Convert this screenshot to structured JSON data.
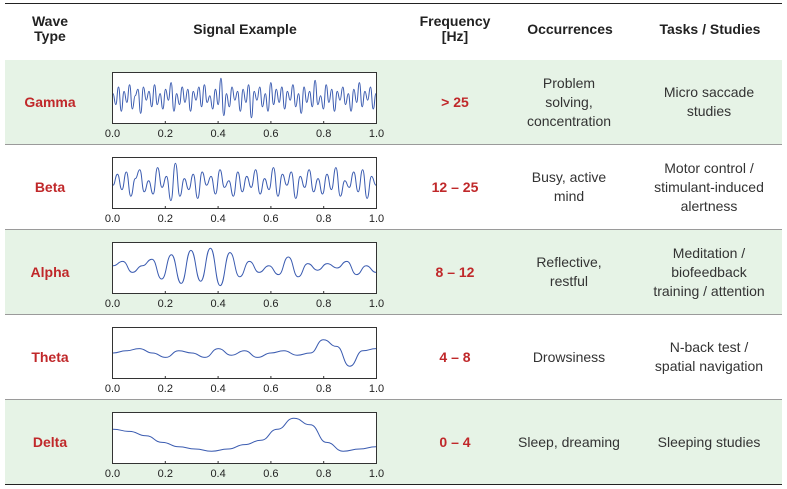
{
  "headers": {
    "wave_type": "Wave\nType",
    "signal": "Signal Example",
    "frequency": "Frequency\n[Hz]",
    "occurrences": "Occurrences",
    "tasks": "Tasks / Studies"
  },
  "rows": [
    {
      "name": "Gamma",
      "frequency": "> 25",
      "occurrences": "Problem\nsolving,\nconcentration",
      "tasks": "Micro saccade\nstudies"
    },
    {
      "name": "Beta",
      "frequency": "12 – 25",
      "occurrences": "Busy, active\nmind",
      "tasks": "Motor control /\nstimulant-induced\nalertness"
    },
    {
      "name": "Alpha",
      "frequency": "8 – 12",
      "occurrences": "Reflective,\nrestful",
      "tasks": "Meditation /\nbiofeedback\ntraining / attention"
    },
    {
      "name": "Theta",
      "frequency": "4 – 8",
      "occurrences": "Drowsiness",
      "tasks": "N-back test /\nspatial navigation"
    },
    {
      "name": "Delta",
      "frequency": "0 – 4",
      "occurrences": "Sleep, dreaming",
      "tasks": "Sleeping studies"
    }
  ],
  "chart_data": [
    {
      "type": "line",
      "series": [
        {
          "values": [
            0.2,
            -0.3,
            0.5,
            -0.6,
            0.3,
            -0.2,
            0.6,
            -0.5,
            0.1,
            0.4,
            -0.7,
            0.5,
            -0.1,
            0.3,
            -0.4,
            0.6,
            -0.3,
            0.2,
            -0.5,
            0.4,
            -0.1,
            0.7,
            -0.6,
            0.2,
            -0.3,
            0.5,
            -0.2,
            0.4,
            -0.6,
            0.3,
            -0.1,
            0.5,
            -0.4,
            0.6,
            -0.2,
            0.1,
            -0.5,
            0.4,
            -0.3,
            0.9,
            -0.8,
            0.2,
            -0.4,
            0.5,
            -0.1,
            0.3,
            -0.6,
            0.4,
            -0.2,
            0.6,
            -0.9,
            0.3,
            -0.1,
            0.5,
            -0.4,
            0.2,
            -0.6,
            0.7,
            -0.3,
            0.4,
            -0.2,
            0.5,
            -0.5,
            0.3,
            -0.1,
            0.6,
            -0.4,
            0.2,
            -0.7,
            0.5,
            -0.2,
            0.3,
            -0.4,
            0.8,
            -0.3,
            0.1,
            -0.5,
            0.6,
            -0.2,
            0.4,
            -0.6,
            0.3,
            -0.1,
            0.5,
            -0.3,
            0.2,
            -0.6,
            0.4,
            -0.2,
            0.7,
            -0.4,
            0.3,
            -0.1,
            0.5,
            -0.5,
            0.2
          ]
        }
      ],
      "xlim": [
        0,
        1
      ],
      "xticks": [
        "0.0",
        "0.2",
        "0.4",
        "0.6",
        "0.8",
        "1.0"
      ]
    },
    {
      "type": "line",
      "series": [
        {
          "values": [
            -0.1,
            0.4,
            -0.3,
            0.5,
            -0.6,
            0.2,
            0.6,
            -0.4,
            0.1,
            -0.5,
            0.7,
            -0.2,
            0.3,
            -0.8,
            0.9,
            -0.6,
            0.2,
            -0.3,
            0.4,
            -0.7,
            0.5,
            -0.1,
            0.3,
            -0.5,
            0.6,
            -0.2,
            0.1,
            -0.6,
            0.5,
            -0.4,
            0.3,
            -0.2,
            0.6,
            -0.5,
            0.2,
            -0.3,
            0.7,
            -0.6,
            0.4,
            -0.1,
            0.5,
            -0.7,
            0.3,
            -0.2,
            0.6,
            -0.4,
            0.2,
            -0.5,
            0.4,
            -0.3,
            0.7,
            -0.6,
            0.1,
            -0.2,
            0.5,
            -0.4,
            0.6,
            -0.7,
            0.3,
            -0.1
          ]
        }
      ],
      "xlim": [
        0,
        1
      ],
      "xticks": [
        "0.0",
        "0.2",
        "0.4",
        "0.6",
        "0.8",
        "1.0"
      ]
    },
    {
      "type": "line",
      "series": [
        {
          "values": [
            0.1,
            0.3,
            -0.2,
            0.1,
            0.4,
            -0.5,
            0.6,
            -0.7,
            0.8,
            -0.6,
            0.9,
            -0.8,
            0.7,
            -0.4,
            0.3,
            -0.2,
            0.1,
            -0.3,
            0.5,
            -0.4,
            0.2,
            -0.1,
            0.2,
            0.0,
            0.3,
            -0.3,
            0.1,
            -0.2
          ]
        }
      ],
      "xlim": [
        0,
        1
      ],
      "xticks": [
        "0.0",
        "0.2",
        "0.4",
        "0.6",
        "0.8",
        "1.0"
      ]
    },
    {
      "type": "line",
      "series": [
        {
          "values": [
            0.0,
            0.1,
            0.2,
            0.0,
            -0.2,
            0.1,
            0.0,
            -0.2,
            0.2,
            -0.1,
            0.1,
            -0.2,
            0.0,
            0.1,
            -0.1,
            0.0,
            0.6,
            0.3,
            -0.6,
            0.1,
            0.2
          ]
        }
      ],
      "xlim": [
        0,
        1
      ],
      "xticks": [
        "0.0",
        "0.2",
        "0.4",
        "0.6",
        "0.8",
        "1.0"
      ]
    },
    {
      "type": "line",
      "series": [
        {
          "values": [
            0.4,
            0.3,
            0.1,
            -0.2,
            -0.4,
            -0.5,
            -0.6,
            -0.5,
            -0.3,
            -0.1,
            0.4,
            0.9,
            0.6,
            -0.2,
            -0.6,
            -0.5,
            -0.4
          ]
        }
      ],
      "xlim": [
        0,
        1
      ],
      "xticks": [
        "0.0",
        "0.2",
        "0.4",
        "0.6",
        "0.8",
        "1.0"
      ]
    }
  ]
}
